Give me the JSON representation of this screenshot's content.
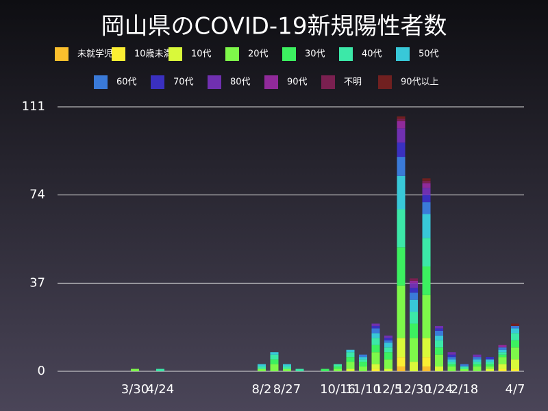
{
  "chart_data": {
    "type": "stacked_bar",
    "title": "岡山県のCOVID-19新規陽性者数",
    "categories": [
      null,
      null,
      "3/30",
      null,
      "4/24",
      null,
      null,
      null,
      null,
      null,
      null,
      null,
      "8/2",
      null,
      "8/27",
      null,
      null,
      null,
      "10/16",
      null,
      "11/10",
      null,
      "12/5",
      null,
      "12/30",
      null,
      "1/24",
      null,
      "2/18",
      null,
      null,
      null,
      "4/7"
    ],
    "ylim": [
      0,
      111
    ],
    "yticks": [
      0,
      37,
      74,
      111
    ],
    "grid": true,
    "series": [
      {
        "name": "未就学児",
        "color": "#fbbf2d",
        "values": [
          0,
          0,
          0,
          0,
          0,
          0,
          0,
          0,
          0,
          0,
          0,
          0,
          0,
          0,
          0,
          0,
          0,
          0,
          0,
          0,
          0,
          0,
          0,
          2,
          0,
          2,
          0,
          0,
          0,
          0,
          0,
          0,
          0
        ]
      },
      {
        "name": "10歳未満",
        "color": "#fbee33",
        "values": [
          0,
          0,
          0,
          0,
          0,
          0,
          0,
          0,
          0,
          0,
          0,
          0,
          0,
          0,
          0,
          0,
          0,
          0,
          0,
          0,
          0,
          1,
          0,
          4,
          0,
          4,
          0,
          0,
          0,
          0,
          0,
          1,
          1
        ]
      },
      {
        "name": "10代",
        "color": "#d9f93a",
        "values": [
          0,
          0,
          0,
          0,
          0,
          0,
          0,
          0,
          0,
          0,
          0,
          0,
          0,
          0,
          0,
          0,
          0,
          0,
          0,
          1,
          0,
          2,
          1,
          8,
          4,
          8,
          2,
          0,
          0,
          0,
          1,
          2,
          4
        ]
      },
      {
        "name": "20代",
        "color": "#7ef84a",
        "values": [
          0,
          0,
          1,
          0,
          0,
          0,
          0,
          0,
          0,
          0,
          0,
          0,
          1,
          3,
          1,
          0,
          0,
          0,
          1,
          3,
          2,
          5,
          4,
          22,
          10,
          18,
          5,
          2,
          1,
          2,
          1,
          3,
          5
        ]
      },
      {
        "name": "30代",
        "color": "#3cf060",
        "values": [
          0,
          0,
          0,
          0,
          0,
          0,
          0,
          0,
          0,
          0,
          0,
          0,
          0,
          2,
          0,
          0,
          0,
          1,
          1,
          2,
          2,
          3,
          3,
          16,
          6,
          12,
          3,
          1,
          0,
          1,
          1,
          1,
          3
        ]
      },
      {
        "name": "40代",
        "color": "#3ce8a8",
        "values": [
          0,
          0,
          0,
          0,
          1,
          0,
          0,
          0,
          0,
          0,
          0,
          0,
          1,
          2,
          1,
          1,
          0,
          0,
          1,
          2,
          1,
          3,
          2,
          16,
          5,
          12,
          3,
          1,
          1,
          1,
          1,
          1,
          3
        ]
      },
      {
        "name": "50代",
        "color": "#38c8d8",
        "values": [
          0,
          0,
          0,
          0,
          0,
          0,
          0,
          0,
          0,
          0,
          0,
          0,
          1,
          1,
          1,
          0,
          0,
          0,
          0,
          1,
          1,
          2,
          2,
          14,
          5,
          10,
          2,
          1,
          0,
          1,
          1,
          1,
          2
        ]
      },
      {
        "name": "60代",
        "color": "#3a7ad8",
        "values": [
          0,
          0,
          0,
          0,
          0,
          0,
          0,
          0,
          0,
          0,
          0,
          0,
          0,
          0,
          0,
          0,
          0,
          0,
          0,
          0,
          1,
          2,
          1,
          8,
          3,
          5,
          2,
          1,
          1,
          1,
          0,
          1,
          1
        ]
      },
      {
        "name": "70代",
        "color": "#3a30c0",
        "values": [
          0,
          0,
          0,
          0,
          0,
          0,
          0,
          0,
          0,
          0,
          0,
          0,
          0,
          0,
          0,
          0,
          0,
          0,
          0,
          0,
          0,
          1,
          1,
          6,
          2,
          3,
          1,
          1,
          0,
          0,
          1,
          0,
          0
        ]
      },
      {
        "name": "80代",
        "color": "#7030b0",
        "values": [
          0,
          0,
          0,
          0,
          0,
          0,
          0,
          0,
          0,
          0,
          0,
          0,
          0,
          0,
          0,
          0,
          0,
          0,
          0,
          0,
          0,
          1,
          1,
          6,
          2,
          3,
          1,
          1,
          0,
          1,
          0,
          0,
          0
        ]
      },
      {
        "name": "90代",
        "color": "#902a9a",
        "values": [
          0,
          0,
          0,
          0,
          0,
          0,
          0,
          0,
          0,
          0,
          0,
          0,
          0,
          0,
          0,
          0,
          0,
          0,
          0,
          0,
          0,
          0,
          0,
          3,
          1,
          2,
          0,
          0,
          0,
          0,
          0,
          1,
          0
        ]
      },
      {
        "name": "不明",
        "color": "#7a2050",
        "values": [
          0,
          0,
          0,
          0,
          0,
          0,
          0,
          0,
          0,
          0,
          0,
          0,
          0,
          0,
          0,
          0,
          0,
          0,
          0,
          0,
          0,
          0,
          0,
          1,
          1,
          1,
          0,
          0,
          0,
          0,
          0,
          0,
          0
        ]
      },
      {
        "name": "90代以上",
        "color": "#702020",
        "values": [
          0,
          0,
          0,
          0,
          0,
          0,
          0,
          0,
          0,
          0,
          0,
          0,
          0,
          0,
          0,
          0,
          0,
          0,
          0,
          0,
          0,
          0,
          0,
          1,
          0,
          1,
          0,
          0,
          0,
          0,
          0,
          0,
          1
        ]
      }
    ]
  }
}
